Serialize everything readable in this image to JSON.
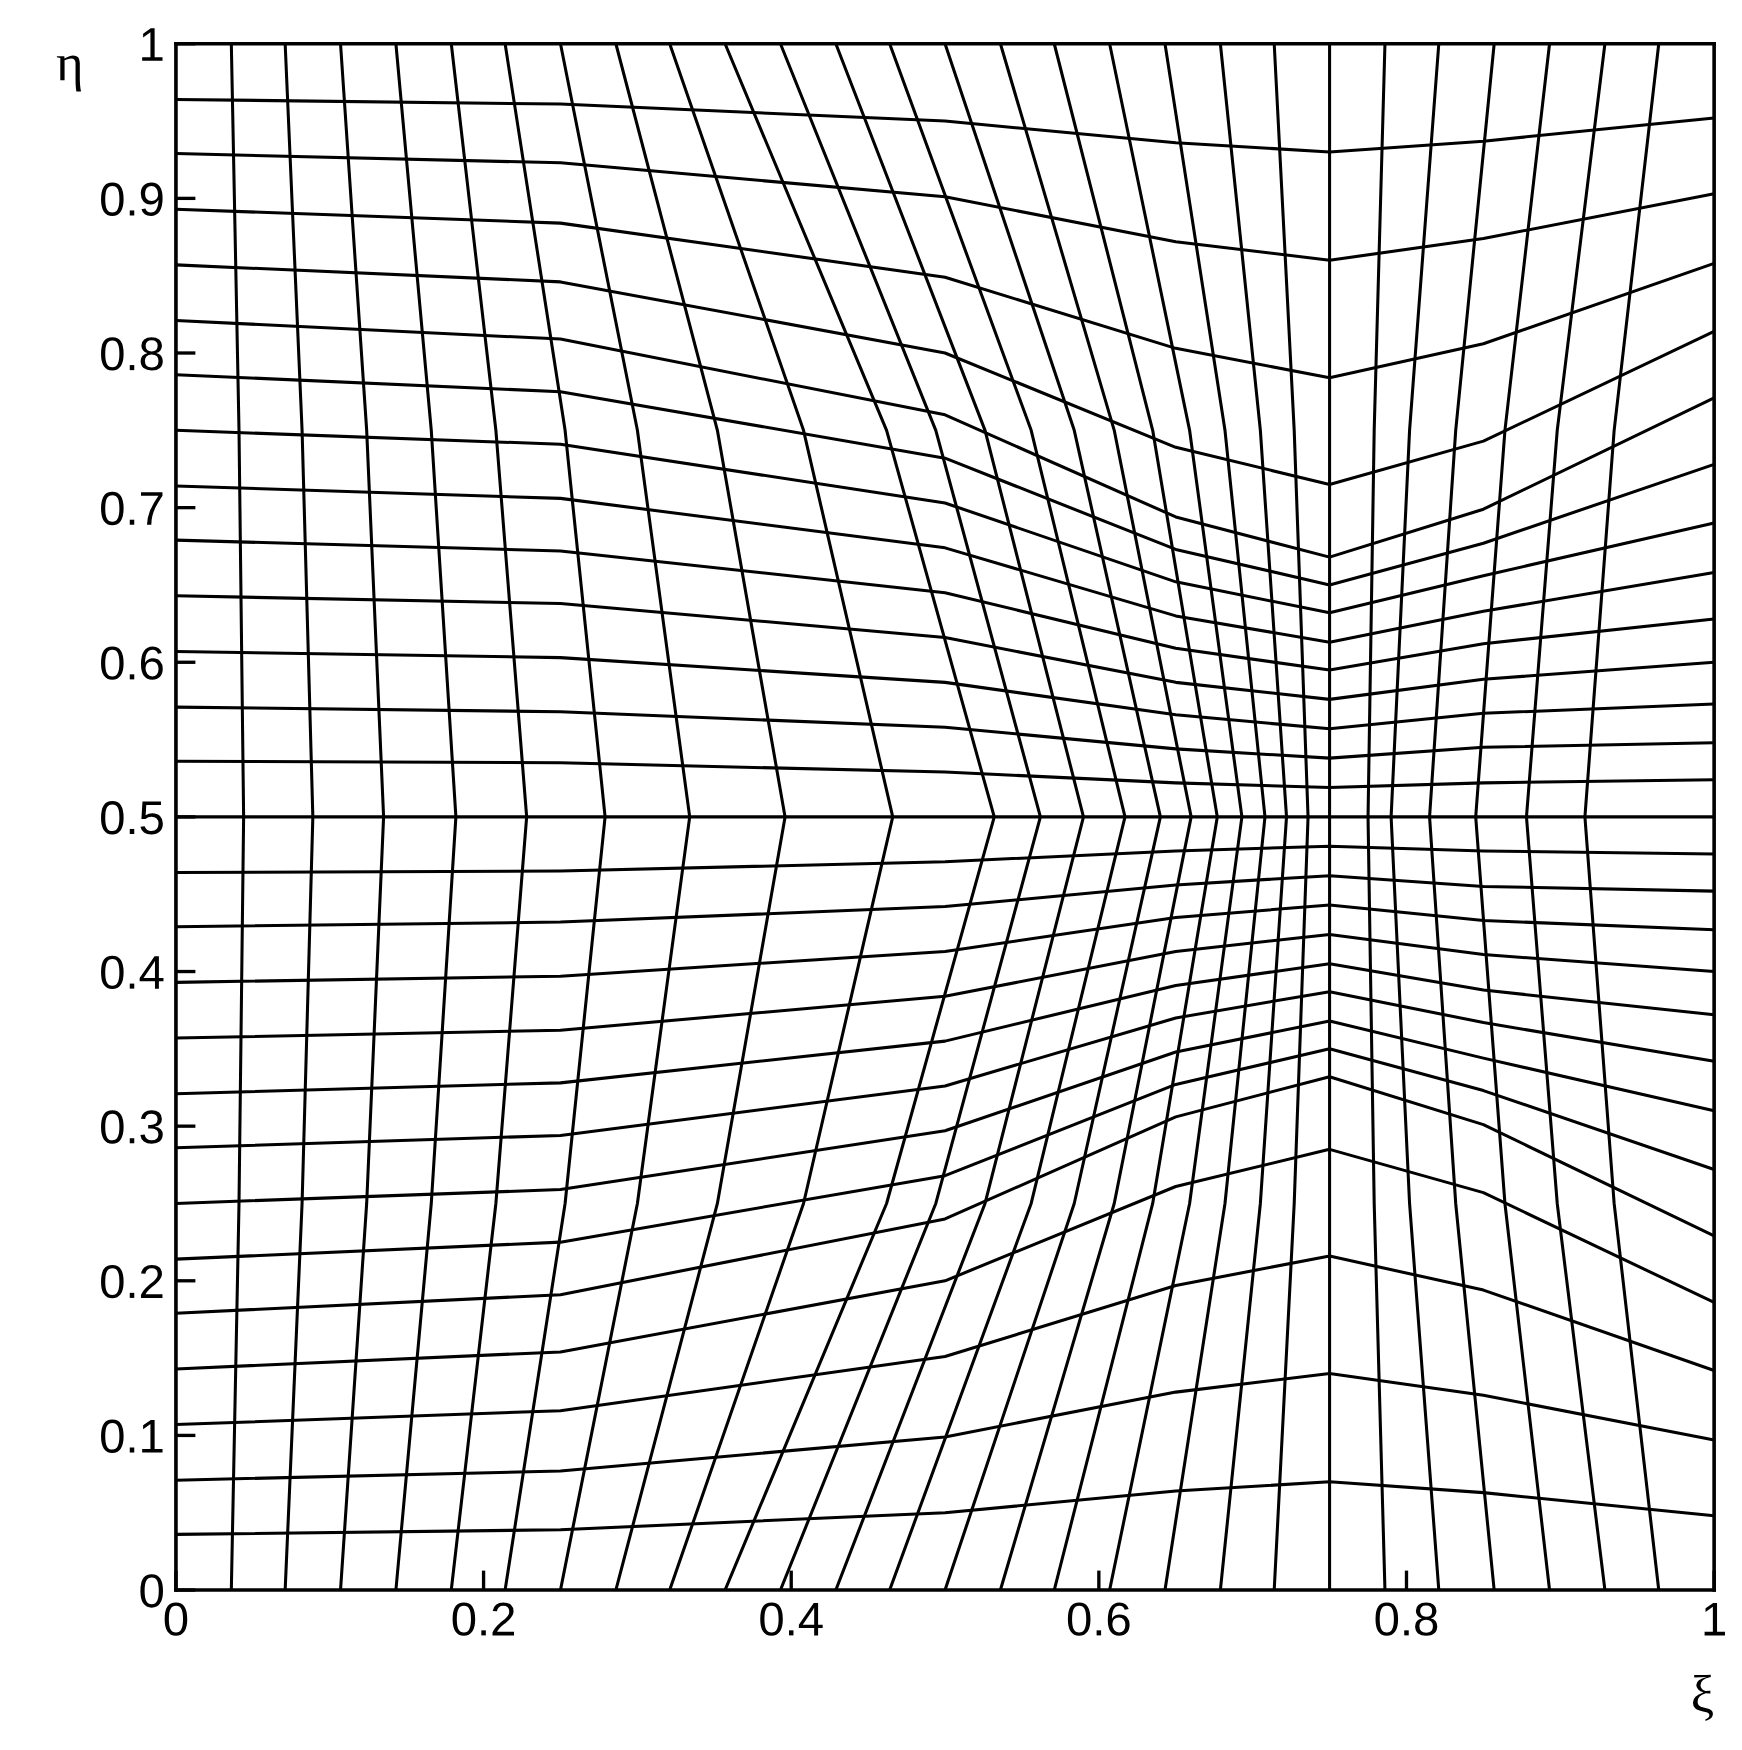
{
  "chart_data": {
    "type": "line",
    "xlabel": "ξ",
    "ylabel": "η",
    "xlim": [
      0,
      1
    ],
    "ylim": [
      0,
      1
    ],
    "xticks": [
      0,
      0.2,
      0.4,
      0.6,
      0.8,
      1
    ],
    "yticks": [
      0,
      0.1,
      0.2,
      0.3,
      0.4,
      0.5,
      0.6,
      0.7,
      0.8,
      0.9,
      1
    ],
    "series": [
      {
        "color": "#000000",
        "x": [
          0,
          0.25,
          0.5,
          0.65,
          0.75,
          0.85,
          1
        ],
        "values": [
          0.036,
          0.039,
          0.05,
          0.064,
          0.07,
          0.063,
          0.048
        ]
      },
      {
        "color": "#000000",
        "x": [
          0,
          0.25,
          0.5,
          0.65,
          0.75,
          0.85,
          1
        ],
        "values": [
          0.071,
          0.077,
          0.099,
          0.128,
          0.14,
          0.126,
          0.097
        ]
      },
      {
        "color": "#000000",
        "x": [
          0,
          0.25,
          0.5,
          0.65,
          0.75,
          0.85,
          1
        ],
        "values": [
          0.107,
          0.116,
          0.151,
          0.197,
          0.216,
          0.194,
          0.142
        ]
      },
      {
        "color": "#000000",
        "x": [
          0,
          0.25,
          0.5,
          0.65,
          0.75,
          0.85,
          1
        ],
        "values": [
          0.143,
          0.154,
          0.2,
          0.261,
          0.285,
          0.257,
          0.186
        ]
      },
      {
        "color": "#000000",
        "x": [
          0,
          0.25,
          0.5,
          0.65,
          0.75,
          0.85,
          1
        ],
        "values": [
          0.179,
          0.191,
          0.24,
          0.306,
          0.332,
          0.301,
          0.229
        ]
      },
      {
        "color": "#000000",
        "x": [
          0,
          0.25,
          0.5,
          0.65,
          0.75,
          0.85,
          1
        ],
        "values": [
          0.214,
          0.225,
          0.268,
          0.327,
          0.35,
          0.323,
          0.272
        ]
      },
      {
        "color": "#000000",
        "x": [
          0,
          0.25,
          0.5,
          0.65,
          0.75,
          0.85,
          1
        ],
        "values": [
          0.25,
          0.259,
          0.297,
          0.348,
          0.368,
          0.344,
          0.31
        ]
      },
      {
        "color": "#000000",
        "x": [
          0,
          0.25,
          0.5,
          0.65,
          0.75,
          0.85,
          1
        ],
        "values": [
          0.286,
          0.294,
          0.326,
          0.37,
          0.387,
          0.367,
          0.342
        ]
      },
      {
        "color": "#000000",
        "x": [
          0,
          0.25,
          0.5,
          0.65,
          0.75,
          0.85,
          1
        ],
        "values": [
          0.321,
          0.328,
          0.355,
          0.391,
          0.405,
          0.388,
          0.372
        ]
      },
      {
        "color": "#000000",
        "x": [
          0,
          0.25,
          0.5,
          0.65,
          0.75,
          0.85,
          1
        ],
        "values": [
          0.357,
          0.362,
          0.384,
          0.413,
          0.424,
          0.411,
          0.4
        ]
      },
      {
        "color": "#000000",
        "x": [
          0,
          0.25,
          0.5,
          0.65,
          0.75,
          0.85,
          1
        ],
        "values": [
          0.393,
          0.397,
          0.413,
          0.435,
          0.443,
          0.433,
          0.427
        ]
      },
      {
        "color": "#000000",
        "x": [
          0,
          0.25,
          0.5,
          0.65,
          0.75,
          0.85,
          1
        ],
        "values": [
          0.429,
          0.432,
          0.442,
          0.456,
          0.462,
          0.455,
          0.452
        ]
      },
      {
        "color": "#000000",
        "x": [
          0,
          0.25,
          0.5,
          0.65,
          0.75,
          0.85,
          1
        ],
        "values": [
          0.464,
          0.465,
          0.471,
          0.478,
          0.481,
          0.478,
          0.476
        ]
      },
      {
        "color": "#000000",
        "x": [
          0,
          0.25,
          0.5,
          0.65,
          0.75,
          0.85,
          1
        ],
        "values": [
          0.5,
          0.5,
          0.5,
          0.5,
          0.5,
          0.5,
          0.5
        ]
      },
      {
        "color": "#000000",
        "x": [
          0,
          0.25,
          0.5,
          0.65,
          0.75,
          0.85,
          1
        ],
        "values": [
          0.536,
          0.535,
          0.529,
          0.522,
          0.519,
          0.522,
          0.524
        ]
      },
      {
        "color": "#000000",
        "x": [
          0,
          0.25,
          0.5,
          0.65,
          0.75,
          0.85,
          1
        ],
        "values": [
          0.571,
          0.568,
          0.558,
          0.544,
          0.538,
          0.545,
          0.548
        ]
      },
      {
        "color": "#000000",
        "x": [
          0,
          0.25,
          0.5,
          0.65,
          0.75,
          0.85,
          1
        ],
        "values": [
          0.607,
          0.603,
          0.587,
          0.566,
          0.557,
          0.567,
          0.573
        ]
      },
      {
        "color": "#000000",
        "x": [
          0,
          0.25,
          0.5,
          0.65,
          0.75,
          0.85,
          1
        ],
        "values": [
          0.643,
          0.638,
          0.616,
          0.587,
          0.576,
          0.589,
          0.6
        ]
      },
      {
        "color": "#000000",
        "x": [
          0,
          0.25,
          0.5,
          0.65,
          0.75,
          0.85,
          1
        ],
        "values": [
          0.679,
          0.672,
          0.645,
          0.609,
          0.595,
          0.612,
          0.628
        ]
      },
      {
        "color": "#000000",
        "x": [
          0,
          0.25,
          0.5,
          0.65,
          0.75,
          0.85,
          1
        ],
        "values": [
          0.714,
          0.706,
          0.674,
          0.63,
          0.613,
          0.633,
          0.658
        ]
      },
      {
        "color": "#000000",
        "x": [
          0,
          0.25,
          0.5,
          0.65,
          0.75,
          0.85,
          1
        ],
        "values": [
          0.75,
          0.741,
          0.703,
          0.652,
          0.632,
          0.656,
          0.69
        ]
      },
      {
        "color": "#000000",
        "x": [
          0,
          0.25,
          0.5,
          0.65,
          0.75,
          0.85,
          1
        ],
        "values": [
          0.786,
          0.775,
          0.732,
          0.673,
          0.65,
          0.677,
          0.728
        ]
      },
      {
        "color": "#000000",
        "x": [
          0,
          0.25,
          0.5,
          0.65,
          0.75,
          0.85,
          1
        ],
        "values": [
          0.821,
          0.809,
          0.76,
          0.694,
          0.668,
          0.699,
          0.771
        ]
      },
      {
        "color": "#000000",
        "x": [
          0,
          0.25,
          0.5,
          0.65,
          0.75,
          0.85,
          1
        ],
        "values": [
          0.857,
          0.846,
          0.8,
          0.739,
          0.715,
          0.743,
          0.814
        ]
      },
      {
        "color": "#000000",
        "x": [
          0,
          0.25,
          0.5,
          0.65,
          0.75,
          0.85,
          1
        ],
        "values": [
          0.893,
          0.884,
          0.849,
          0.803,
          0.784,
          0.806,
          0.858
        ]
      },
      {
        "color": "#000000",
        "x": [
          0,
          0.25,
          0.5,
          0.65,
          0.75,
          0.85,
          1
        ],
        "values": [
          0.929,
          0.923,
          0.901,
          0.872,
          0.86,
          0.874,
          0.903
        ]
      },
      {
        "color": "#000000",
        "x": [
          0,
          0.25,
          0.5,
          0.65,
          0.75,
          0.85,
          1
        ],
        "values": [
          0.964,
          0.961,
          0.95,
          0.936,
          0.93,
          0.937,
          0.952
        ]
      },
      {
        "color": "#000000",
        "x": [
          0.036,
          0.041,
          0.044,
          0.041,
          0.036
        ],
        "values": [
          0,
          0.25,
          0.5,
          0.75,
          1
        ]
      },
      {
        "color": "#000000",
        "x": [
          0.071,
          0.082,
          0.089,
          0.082,
          0.071
        ],
        "values": [
          0,
          0.25,
          0.5,
          0.75,
          1
        ]
      },
      {
        "color": "#000000",
        "x": [
          0.107,
          0.124,
          0.135,
          0.124,
          0.107
        ],
        "values": [
          0,
          0.25,
          0.5,
          0.75,
          1
        ]
      },
      {
        "color": "#000000",
        "x": [
          0.143,
          0.166,
          0.182,
          0.166,
          0.143
        ],
        "values": [
          0,
          0.25,
          0.5,
          0.75,
          1
        ]
      },
      {
        "color": "#000000",
        "x": [
          0.179,
          0.208,
          0.228,
          0.208,
          0.179
        ],
        "values": [
          0,
          0.25,
          0.5,
          0.75,
          1
        ]
      },
      {
        "color": "#000000",
        "x": [
          0.214,
          0.253,
          0.279,
          0.253,
          0.214
        ],
        "values": [
          0,
          0.25,
          0.5,
          0.75,
          1
        ]
      },
      {
        "color": "#000000",
        "x": [
          0.25,
          0.3,
          0.334,
          0.3,
          0.25
        ],
        "values": [
          0,
          0.25,
          0.5,
          0.75,
          1
        ]
      },
      {
        "color": "#000000",
        "x": [
          0.286,
          0.352,
          0.396,
          0.352,
          0.286
        ],
        "values": [
          0,
          0.25,
          0.5,
          0.75,
          1
        ]
      },
      {
        "color": "#000000",
        "x": [
          0.321,
          0.408,
          0.466,
          0.408,
          0.321
        ],
        "values": [
          0,
          0.25,
          0.5,
          0.75,
          1
        ]
      },
      {
        "color": "#000000",
        "x": [
          0.357,
          0.462,
          0.532,
          0.462,
          0.357
        ],
        "values": [
          0,
          0.25,
          0.5,
          0.75,
          1
        ]
      },
      {
        "color": "#000000",
        "x": [
          0.393,
          0.494,
          0.562,
          0.494,
          0.393
        ],
        "values": [
          0,
          0.25,
          0.5,
          0.75,
          1
        ]
      },
      {
        "color": "#000000",
        "x": [
          0.429,
          0.526,
          0.59,
          0.526,
          0.429
        ],
        "values": [
          0,
          0.25,
          0.5,
          0.75,
          1
        ]
      },
      {
        "color": "#000000",
        "x": [
          0.464,
          0.556,
          0.617,
          0.556,
          0.464
        ],
        "values": [
          0,
          0.25,
          0.5,
          0.75,
          1
        ]
      },
      {
        "color": "#000000",
        "x": [
          0.5,
          0.584,
          0.64,
          0.584,
          0.5
        ],
        "values": [
          0,
          0.25,
          0.5,
          0.75,
          1
        ]
      },
      {
        "color": "#000000",
        "x": [
          0.536,
          0.61,
          0.66,
          0.61,
          0.536
        ],
        "values": [
          0,
          0.25,
          0.5,
          0.75,
          1
        ]
      },
      {
        "color": "#000000",
        "x": [
          0.571,
          0.635,
          0.677,
          0.635,
          0.571
        ],
        "values": [
          0,
          0.25,
          0.5,
          0.75,
          1
        ]
      },
      {
        "color": "#000000",
        "x": [
          0.607,
          0.659,
          0.693,
          0.659,
          0.607
        ],
        "values": [
          0,
          0.25,
          0.5,
          0.75,
          1
        ]
      },
      {
        "color": "#000000",
        "x": [
          0.643,
          0.682,
          0.708,
          0.682,
          0.643
        ],
        "values": [
          0,
          0.25,
          0.5,
          0.75,
          1
        ]
      },
      {
        "color": "#000000",
        "x": [
          0.679,
          0.705,
          0.722,
          0.705,
          0.679
        ],
        "values": [
          0,
          0.25,
          0.5,
          0.75,
          1
        ]
      },
      {
        "color": "#000000",
        "x": [
          0.714,
          0.727,
          0.736,
          0.727,
          0.714
        ],
        "values": [
          0,
          0.25,
          0.5,
          0.75,
          1
        ]
      },
      {
        "color": "#000000",
        "x": [
          0.75,
          0.75,
          0.75,
          0.75,
          0.75
        ],
        "values": [
          0,
          0.25,
          0.5,
          0.75,
          1
        ]
      },
      {
        "color": "#000000",
        "x": [
          0.786,
          0.779,
          0.775,
          0.779,
          0.786
        ],
        "values": [
          0,
          0.25,
          0.5,
          0.75,
          1
        ]
      },
      {
        "color": "#000000",
        "x": [
          0.821,
          0.802,
          0.79,
          0.802,
          0.821
        ],
        "values": [
          0,
          0.25,
          0.5,
          0.75,
          1
        ]
      },
      {
        "color": "#000000",
        "x": [
          0.857,
          0.832,
          0.815,
          0.832,
          0.857
        ],
        "values": [
          0,
          0.25,
          0.5,
          0.75,
          1
        ]
      },
      {
        "color": "#000000",
        "x": [
          0.893,
          0.864,
          0.845,
          0.864,
          0.893
        ],
        "values": [
          0,
          0.25,
          0.5,
          0.75,
          1
        ]
      },
      {
        "color": "#000000",
        "x": [
          0.929,
          0.898,
          0.878,
          0.898,
          0.929
        ],
        "values": [
          0,
          0.25,
          0.5,
          0.75,
          1
        ]
      },
      {
        "color": "#000000",
        "x": [
          0.964,
          0.935,
          0.916,
          0.935,
          0.964
        ],
        "values": [
          0,
          0.25,
          0.5,
          0.75,
          1
        ]
      }
    ]
  }
}
